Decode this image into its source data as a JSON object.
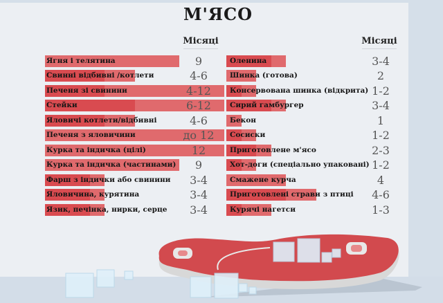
{
  "title": "М'ЯСО",
  "header_left": "Місяці",
  "header_right": "Місяці",
  "colors": {
    "bar_dark": "#d94b50",
    "bar_light": "#e06a6d",
    "background": "#eceff3",
    "accent": "#d5dfe9"
  },
  "chart_data": {
    "type": "bar",
    "title": "М'ЯСО",
    "xlabel": "Місяці",
    "orientation": "horizontal",
    "xlim": [
      0,
      12
    ],
    "grid": false,
    "groups": [
      {
        "items": [
          {
            "label": "Ягня і телятина",
            "value": "9",
            "min": 9,
            "max": 9
          },
          {
            "label": "Свинні відбивні /котлети",
            "value": "4-6",
            "min": 4,
            "max": 6
          },
          {
            "label": "Печеня зі свинини",
            "value": "4-12",
            "min": 4,
            "max": 12
          },
          {
            "label": "Стейки",
            "value": "6-12",
            "min": 6,
            "max": 12
          },
          {
            "label": "Яловичі котлети/відбивні",
            "value": "4-6",
            "min": 4,
            "max": 6
          },
          {
            "label": "Печеня з яловичини",
            "value": "до 12",
            "min": 12,
            "max": 12
          },
          {
            "label": "Курка та індичка (цілі)",
            "value": "12",
            "min": 12,
            "max": 12
          },
          {
            "label": "Курка та індичка (частинами)",
            "value": "9",
            "min": 9,
            "max": 9
          },
          {
            "label": "Фарш з індички або свинини",
            "value": "3-4",
            "min": 3,
            "max": 4
          },
          {
            "label": "Яловичина, курятина",
            "value": "3-4",
            "min": 3,
            "max": 4
          },
          {
            "label": "Язик, печінка, нирки, серце",
            "value": "3-4",
            "min": 3,
            "max": 4
          }
        ]
      },
      {
        "items": [
          {
            "label": "Оленина",
            "value": "3-4",
            "min": 3,
            "max": 4
          },
          {
            "label": "Шинка (готова)",
            "value": "2",
            "min": 2,
            "max": 2
          },
          {
            "label": "Консервована шинка (відкрита)",
            "value": "1-2",
            "min": 1,
            "max": 2
          },
          {
            "label": "Сирий гамбургер",
            "value": "3-4",
            "min": 3,
            "max": 4
          },
          {
            "label": "Бекон",
            "value": "1",
            "min": 1,
            "max": 1
          },
          {
            "label": "Сосиски",
            "value": "1-2",
            "min": 1,
            "max": 2
          },
          {
            "label": "Приготовлене м'ясо",
            "value": "2-3",
            "min": 2,
            "max": 3
          },
          {
            "label": "Хот-доги (спеціально упаковані)",
            "value": "1-2",
            "min": 1,
            "max": 2
          },
          {
            "label": "Смажене курча",
            "value": "4",
            "min": 4,
            "max": 4
          },
          {
            "label": "Приготовлені страви з птиці",
            "value": "4-6",
            "min": 4,
            "max": 6
          },
          {
            "label": "Курячі нагетси",
            "value": "1-3",
            "min": 1,
            "max": 3
          }
        ]
      }
    ]
  }
}
